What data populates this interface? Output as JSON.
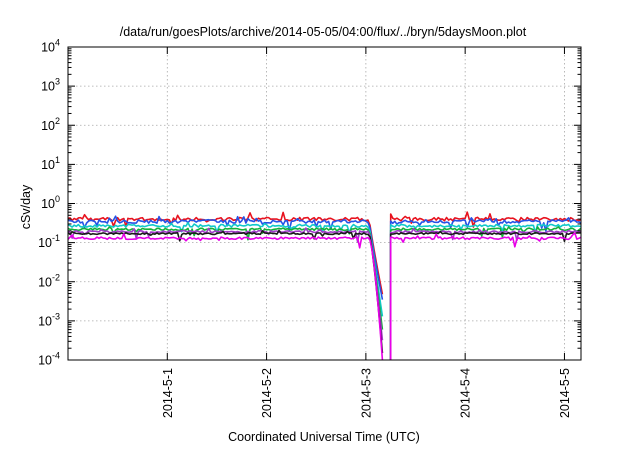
{
  "chart_data": {
    "type": "line",
    "title": "/data/run/goesPlots/archive/2014-05-05/04:00/flux/../bryn/5daysMoon.plot",
    "xlabel": "Coordinated Universal Time (UTC)",
    "ylabel": "cSv/day",
    "y_scale": "log",
    "ylim": [
      0.0001,
      10000
    ],
    "xlim": [
      "2014-04-30 00:00",
      "2014-05-05 04:00"
    ],
    "y_ticks": [
      {
        "base": "10",
        "exp": "-4"
      },
      {
        "base": "10",
        "exp": "-3"
      },
      {
        "base": "10",
        "exp": "-2"
      },
      {
        "base": "10",
        "exp": "-1"
      },
      {
        "base": "10",
        "exp": "0"
      },
      {
        "base": "10",
        "exp": "1"
      },
      {
        "base": "10",
        "exp": "2"
      },
      {
        "base": "10",
        "exp": "3"
      },
      {
        "base": "10",
        "exp": "4"
      }
    ],
    "x_ticks": [
      "2014-5-1",
      "2014-5-2",
      "2014-5-3",
      "2014-5-4",
      "2014-5-5"
    ],
    "grid": true,
    "legend": "none",
    "gap": [
      "2014-05-03 04:00",
      "2014-05-03 06:00"
    ],
    "series": [
      {
        "color": "#e8121e",
        "level": 0.4,
        "spread": 0.1,
        "spike": 0.45,
        "dip_end": 0.0048,
        "dip_slope": 0.9
      },
      {
        "color": "#2552e6",
        "level": 0.35,
        "spread": 0.1,
        "spike": 0.4,
        "dip_end": 0.0035,
        "dip_slope": 0.9
      },
      {
        "color": "#11c9c9",
        "level": 0.27,
        "spread": 0.08,
        "spike": 0.3,
        "dip_end": 0.0013,
        "dip_slope": 1.0
      },
      {
        "color": "#16b03a",
        "level": 0.22,
        "spread": 0.07,
        "spike": 0.25,
        "dip_end": 0.0006,
        "dip_slope": 1.1
      },
      {
        "color": "#a03cc8",
        "level": 0.19,
        "spread": 0.06,
        "spike": 0.2,
        "dip_end": 0.00032,
        "dip_slope": 1.2
      },
      {
        "color": "#1a1a1a",
        "level": 0.17,
        "spread": 0.05,
        "spike": 0.18,
        "dip_end": 0.00015,
        "dip_slope": 1.3
      },
      {
        "color": "#e800e8",
        "level": 0.13,
        "spread": 0.07,
        "spike": 0.4,
        "dip_end": 0.0001,
        "dip_slope": 1.5
      }
    ]
  }
}
